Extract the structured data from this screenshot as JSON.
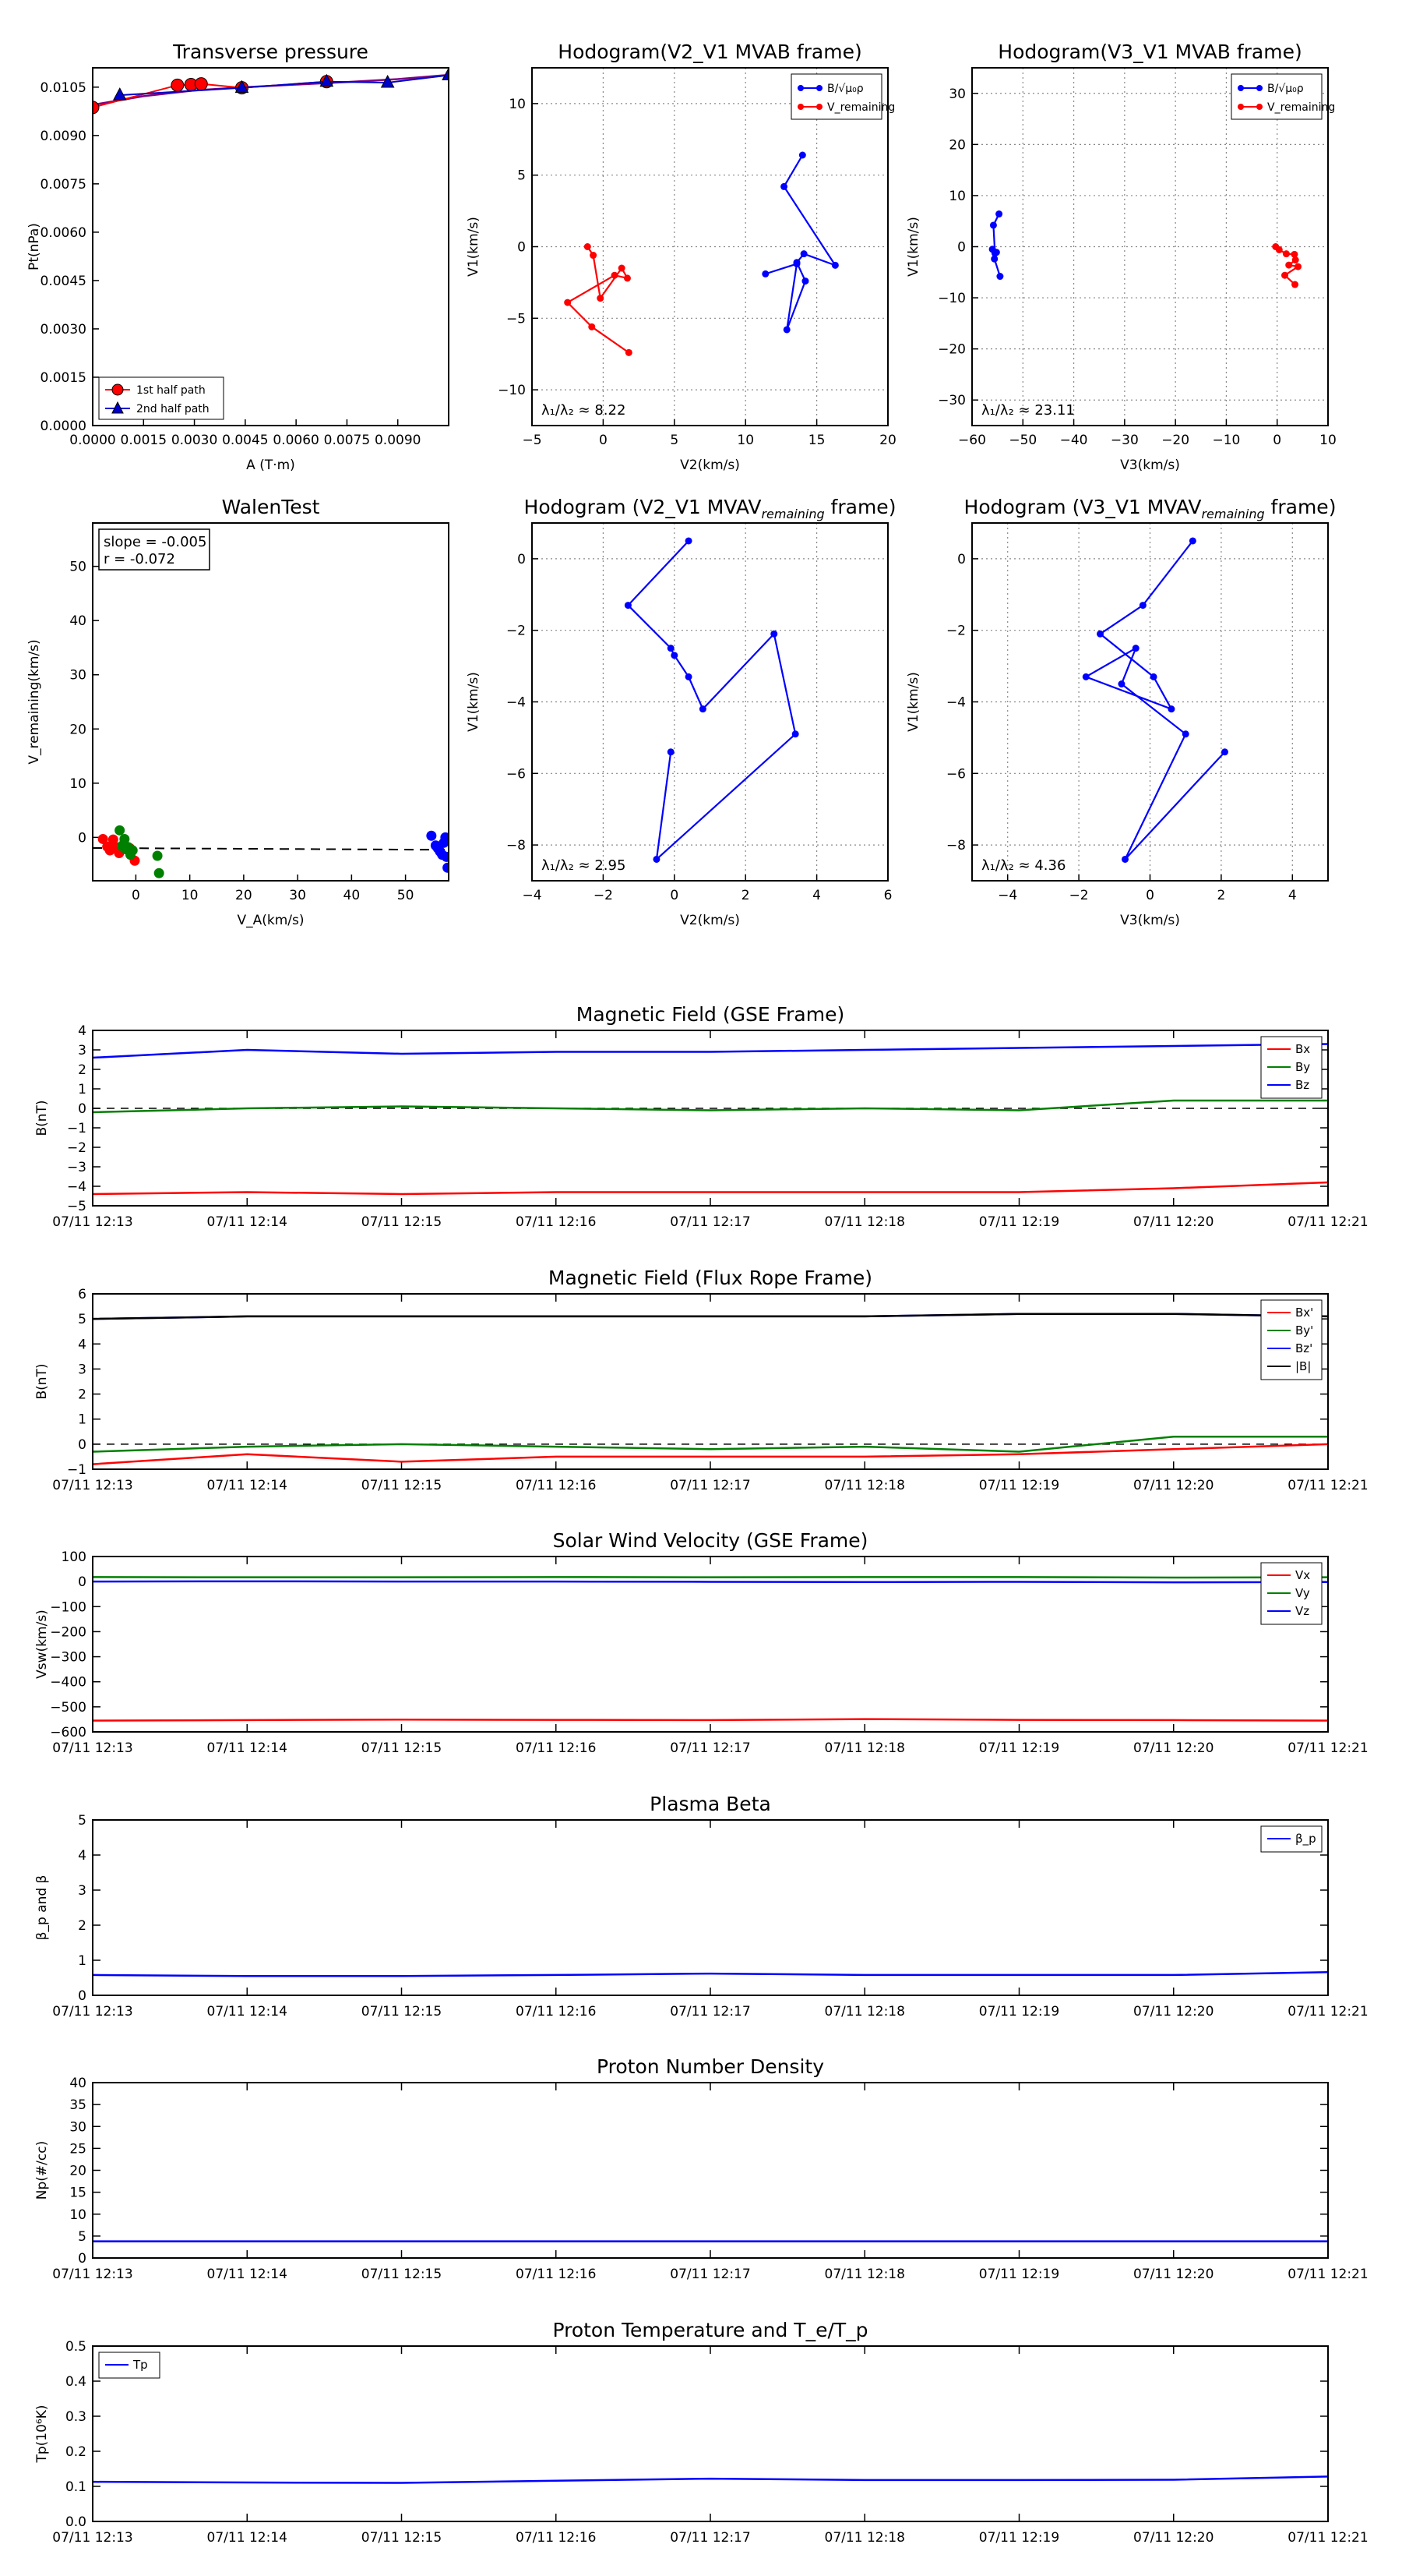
{
  "panels": [
    {
      "id": "tp",
      "title": "Transverse pressure",
      "xlabel": "A (T·m)",
      "ylabel": "Pt(nPa)",
      "xlim": [
        0,
        0.0105
      ],
      "ylim": [
        0,
        0.0111
      ],
      "xticks": [
        "0.0000",
        "0.0015",
        "0.0030",
        "0.0045",
        "0.0060",
        "0.0075",
        "0.0090"
      ],
      "xtickvals": [
        0,
        0.0015,
        0.003,
        0.0045,
        0.006,
        0.0075,
        0.009
      ],
      "yticks": [
        "0.0000",
        "0.0015",
        "0.0030",
        "0.0045",
        "0.0060",
        "0.0075",
        "0.0090",
        "0.0105"
      ],
      "ytickvals": [
        0,
        0.0015,
        0.003,
        0.0045,
        0.006,
        0.0075,
        0.009,
        0.0105
      ],
      "grid": false,
      "legend": [
        "1st half path",
        "2nd half path"
      ],
      "series": [
        {
          "name": "1st half path",
          "color": "#ff0000",
          "marker": "circle",
          "x": [
            0.0,
            0.0025,
            0.0029,
            0.0032,
            0.0044,
            0.0069
          ],
          "y": [
            0.00987,
            0.01056,
            0.01058,
            0.0106,
            0.01048,
            0.01067
          ]
        },
        {
          "name": "2nd half path",
          "color": "#0000cc",
          "marker": "triangle",
          "x": [
            0.0008,
            0.0044,
            0.0069,
            0.0087,
            0.0105
          ],
          "y": [
            0.01025,
            0.01048,
            0.01067,
            0.01064,
            0.01087
          ]
        }
      ],
      "fit_color": "#800080"
    },
    {
      "id": "h1",
      "title": "Hodogram(V2_V1 MVAB frame)",
      "xlabel": "V2(km/s)",
      "ylabel": "V1(km/s)",
      "xlim": [
        -5,
        20
      ],
      "ylim": [
        -12.5,
        12.5
      ],
      "xticks": [
        "−5",
        "0",
        "5",
        "10",
        "15",
        "20"
      ],
      "xtickvals": [
        -5,
        0,
        5,
        10,
        15,
        20
      ],
      "yticks": [
        "−10",
        "−5",
        "0",
        "5",
        "10"
      ],
      "ytickvals": [
        -10,
        -5,
        0,
        5,
        10
      ],
      "grid": true,
      "legend": [
        "B/√μ₀ρ",
        "V_remaining"
      ],
      "legend_loc": "top-right",
      "note": "λ₁/λ₂ ≈ 8.22",
      "series": [
        {
          "name": "B/√μ₀ρ",
          "color": "#0000ff",
          "x": [
            14.0,
            12.7,
            16.3,
            14.1,
            13.6,
            14.2,
            12.9,
            13.6,
            11.4
          ],
          "y": [
            6.4,
            4.2,
            -1.3,
            -0.5,
            -1.1,
            -2.4,
            -5.8,
            -1.2,
            -1.9
          ]
        },
        {
          "name": "V_remaining",
          "color": "#ff0000",
          "x": [
            -1.1,
            -0.7,
            -0.2,
            1.3,
            1.7,
            0.8,
            -2.5,
            -0.8,
            1.8
          ],
          "y": [
            0.0,
            -0.6,
            -3.6,
            -1.5,
            -2.2,
            -2.0,
            -3.9,
            -5.6,
            -7.4
          ]
        }
      ]
    },
    {
      "id": "h2",
      "title": "Hodogram(V3_V1 MVAB frame)",
      "xlabel": "V3(km/s)",
      "ylabel": "V1(km/s)",
      "xlim": [
        -60,
        10
      ],
      "ylim": [
        -35,
        35
      ],
      "xticks": [
        "−60",
        "−50",
        "−40",
        "−30",
        "−20",
        "−10",
        "0",
        "10"
      ],
      "xtickvals": [
        -60,
        -50,
        -40,
        -30,
        -20,
        -10,
        0,
        10
      ],
      "yticks": [
        "−30",
        "−20",
        "−10",
        "0",
        "10",
        "20",
        "30"
      ],
      "ytickvals": [
        -30,
        -20,
        -10,
        0,
        10,
        20,
        30
      ],
      "grid": true,
      "legend": [
        "B/√μ₀ρ",
        "V_remaining"
      ],
      "legend_loc": "top-right",
      "note": "λ₁/λ₂ ≈ 23.11",
      "series": [
        {
          "name": "B/√μ₀ρ",
          "color": "#0000ff",
          "x": [
            -54.7,
            -55.8,
            -55.5,
            -56.0,
            -55.2,
            -55.6,
            -54.5
          ],
          "y": [
            6.4,
            4.2,
            -1.3,
            -0.5,
            -1.1,
            -2.4,
            -5.8
          ]
        },
        {
          "name": "V_remaining",
          "color": "#ff0000",
          "x": [
            -0.3,
            0.4,
            1.8,
            3.4,
            3.6,
            2.3,
            4.1,
            1.5,
            3.5
          ],
          "y": [
            0.0,
            -0.6,
            -1.4,
            -1.5,
            -2.6,
            -3.6,
            -3.9,
            -5.6,
            -7.4
          ]
        }
      ]
    },
    {
      "id": "walen",
      "title": "WalenTest",
      "xlabel": "V_A(km/s)",
      "ylabel": "V_remaining(km/s)",
      "xlim": [
        -8,
        58
      ],
      "ylim": [
        -8,
        58
      ],
      "xticks": [
        "0",
        "10",
        "20",
        "30",
        "40",
        "50"
      ],
      "xtickvals": [
        0,
        10,
        20,
        30,
        40,
        50
      ],
      "yticks": [
        "0",
        "10",
        "20",
        "30",
        "40",
        "50"
      ],
      "ytickvals": [
        0,
        10,
        20,
        30,
        40,
        50
      ],
      "grid": false,
      "stats": [
        "slope = -0.005",
        "r = -0.072"
      ],
      "fit": {
        "slope": -0.005,
        "intercept": -2.0
      },
      "series": [
        {
          "name": "red",
          "color": "#ff0000",
          "x": [
            -6.1,
            -5.3,
            -4.8,
            -4.2,
            -3.7,
            -3.1,
            -2.2,
            -1.1,
            -0.2
          ],
          "y": [
            -0.3,
            -1.7,
            -2.4,
            -0.4,
            -1.8,
            -2.9,
            -1.2,
            -2.0,
            -4.3
          ]
        },
        {
          "name": "green",
          "color": "#008000",
          "x": [
            -3.0,
            -2.6,
            -2.1,
            -1.8,
            -1.4,
            -1.0,
            -0.6,
            4.0,
            4.3
          ],
          "y": [
            1.3,
            -1.6,
            -0.3,
            -2.2,
            -1.8,
            -3.2,
            -2.4,
            -3.4,
            -6.6
          ]
        },
        {
          "name": "blue",
          "color": "#0000ff",
          "x": [
            54.8,
            55.6,
            56.0,
            56.4,
            56.8,
            57.1,
            57.4,
            57.6,
            57.8
          ],
          "y": [
            0.3,
            -1.5,
            -2.0,
            -2.6,
            -3.2,
            -1.0,
            0.0,
            -3.6,
            -5.6
          ]
        }
      ]
    },
    {
      "id": "h3",
      "title": "Hodogram (V2_V1 MVAV",
      "title_sub": "remaining",
      "title_end": " frame)",
      "xlabel": "V2(km/s)",
      "ylabel": "V1(km/s)",
      "xlim": [
        -4,
        6
      ],
      "ylim": [
        -9,
        1
      ],
      "xticks": [
        "−4",
        "−2",
        "0",
        "2",
        "4",
        "6"
      ],
      "xtickvals": [
        -4,
        -2,
        0,
        2,
        4,
        6
      ],
      "yticks": [
        "−8",
        "−6",
        "−4",
        "−2",
        "0"
      ],
      "ytickvals": [
        -8,
        -6,
        -4,
        -2,
        0
      ],
      "grid": true,
      "note": "λ₁/λ₂ ≈ 2.95",
      "series": [
        {
          "name": "V",
          "color": "#0000ff",
          "x": [
            0.4,
            -1.3,
            -0.1,
            0.0,
            0.4,
            0.8,
            2.8,
            3.4,
            -0.5,
            -0.1
          ],
          "y": [
            0.5,
            -1.3,
            -2.5,
            -2.7,
            -3.3,
            -4.2,
            -2.1,
            -4.9,
            -8.4,
            -5.4
          ]
        }
      ]
    },
    {
      "id": "h4",
      "title": "Hodogram (V3_V1 MVAV",
      "title_sub": "remaining",
      "title_end": " frame)",
      "xlabel": "V3(km/s)",
      "ylabel": "V1(km/s)",
      "xlim": [
        -5,
        5
      ],
      "ylim": [
        -9,
        1
      ],
      "xticks": [
        "−4",
        "−2",
        "0",
        "2",
        "4"
      ],
      "xtickvals": [
        -4,
        -2,
        0,
        2,
        4
      ],
      "yticks": [
        "−8",
        "−6",
        "−4",
        "−2",
        "0"
      ],
      "ytickvals": [
        -8,
        -6,
        -4,
        -2,
        0
      ],
      "grid": true,
      "note": "λ₁/λ₂ ≈ 4.36",
      "series": [
        {
          "name": "V",
          "color": "#0000ff",
          "x": [
            1.2,
            -0.2,
            -1.4,
            0.1,
            0.6,
            -1.8,
            -0.4,
            -0.8,
            1.0,
            -0.7,
            2.1
          ],
          "y": [
            0.5,
            -1.3,
            -2.1,
            -3.3,
            -4.2,
            -3.3,
            -2.5,
            -3.5,
            -4.9,
            -8.4,
            -5.4
          ]
        }
      ]
    }
  ],
  "time_axis": {
    "ticks": [
      "07/11 12:13",
      "07/11 12:14",
      "07/11 12:15",
      "07/11 12:16",
      "07/11 12:17",
      "07/11 12:18",
      "07/11 12:19",
      "07/11 12:20",
      "07/11 12:21"
    ],
    "minutes": [
      0,
      1,
      2,
      3,
      4,
      5,
      6,
      7,
      8
    ],
    "range": [
      0,
      8
    ]
  },
  "timeseries": [
    {
      "id": "bgse",
      "title": "Magnetic Field (GSE Frame)",
      "ylabel": "B(nT)",
      "ylim": [
        -5,
        4
      ],
      "yticks": [
        "4",
        "3",
        "2",
        "1",
        "0",
        "−1",
        "−2",
        "−3",
        "−4",
        "−5"
      ],
      "ytickvals": [
        4,
        3,
        2,
        1,
        0,
        -1,
        -2,
        -3,
        -4,
        -5
      ],
      "zero_line": true,
      "legend": [
        "Bx",
        "By",
        "Bz"
      ],
      "series": [
        {
          "name": "Bx",
          "color": "#ff0000",
          "t": [
            0,
            1,
            2,
            3,
            4,
            5,
            6,
            7,
            8
          ],
          "v": [
            -4.4,
            -4.3,
            -4.4,
            -4.3,
            -4.3,
            -4.3,
            -4.3,
            -4.1,
            -3.8
          ]
        },
        {
          "name": "By",
          "color": "#008000",
          "t": [
            0,
            1,
            2,
            3,
            4,
            5,
            6,
            7,
            8
          ],
          "v": [
            -0.2,
            0.0,
            0.1,
            0.0,
            -0.1,
            -0.0,
            -0.1,
            0.4,
            0.4
          ]
        },
        {
          "name": "Bz",
          "color": "#0000ff",
          "t": [
            0,
            1,
            2,
            3,
            4,
            5,
            6,
            7,
            8
          ],
          "v": [
            2.6,
            3.0,
            2.8,
            2.9,
            2.9,
            3.0,
            3.1,
            3.2,
            3.3
          ]
        }
      ]
    },
    {
      "id": "bfr",
      "title": "Magnetic Field (Flux Rope Frame)",
      "ylabel": "B(nT)",
      "ylim": [
        -1,
        6
      ],
      "yticks": [
        "6",
        "5",
        "4",
        "3",
        "2",
        "1",
        "0",
        "−1"
      ],
      "ytickvals": [
        6,
        5,
        4,
        3,
        2,
        1,
        0,
        -1
      ],
      "zero_line": true,
      "legend": [
        "Bx'",
        "By'",
        "Bz'",
        "|B|"
      ],
      "series": [
        {
          "name": "Bx'",
          "color": "#ff0000",
          "t": [
            0,
            1,
            2,
            3,
            4,
            5,
            6,
            7,
            8
          ],
          "v": [
            -0.8,
            -0.4,
            -0.7,
            -0.5,
            -0.5,
            -0.5,
            -0.4,
            -0.2,
            0.0
          ]
        },
        {
          "name": "By'",
          "color": "#008000",
          "t": [
            0,
            1,
            2,
            3,
            4,
            5,
            6,
            7,
            8
          ],
          "v": [
            -0.3,
            -0.1,
            0.0,
            -0.1,
            -0.2,
            -0.1,
            -0.3,
            0.3,
            0.3
          ]
        },
        {
          "name": "Bz'",
          "color": "#0000ff",
          "t": [
            0,
            1,
            2,
            3,
            4,
            5,
            6,
            7,
            8
          ],
          "v": [
            5.0,
            5.1,
            5.1,
            5.1,
            5.1,
            5.1,
            5.2,
            5.2,
            5.1
          ]
        },
        {
          "name": "|B|",
          "color": "#000000",
          "t": [
            0,
            1,
            2,
            3,
            4,
            5,
            6,
            7,
            8
          ],
          "v": [
            5.0,
            5.1,
            5.1,
            5.1,
            5.1,
            5.1,
            5.2,
            5.2,
            5.1
          ]
        }
      ]
    },
    {
      "id": "vsw",
      "title": "Solar Wind Velocity (GSE Frame)",
      "ylabel": "Vsw(km/s)",
      "ylim": [
        -600,
        100
      ],
      "yticks": [
        "100",
        "0",
        "−100",
        "−200",
        "−300",
        "−400",
        "−500",
        "−600"
      ],
      "ytickvals": [
        100,
        0,
        -100,
        -200,
        -300,
        -400,
        -500,
        -600
      ],
      "zero_line": false,
      "legend": [
        "Vx",
        "Vy",
        "Vz"
      ],
      "series": [
        {
          "name": "Vx",
          "color": "#ff0000",
          "t": [
            0,
            1,
            2,
            3,
            4,
            5,
            6,
            7,
            8
          ],
          "v": [
            -555,
            -553,
            -551,
            -552,
            -553,
            -549,
            -552,
            -553,
            -555
          ]
        },
        {
          "name": "Vy",
          "color": "#008000",
          "t": [
            0,
            1,
            2,
            3,
            4,
            5,
            6,
            7,
            8
          ],
          "v": [
            18,
            17,
            17,
            18,
            17,
            18,
            18,
            16,
            17
          ]
        },
        {
          "name": "Vz",
          "color": "#0000ff",
          "t": [
            0,
            1,
            2,
            3,
            4,
            5,
            6,
            7,
            8
          ],
          "v": [
            0,
            1,
            0,
            0,
            -1,
            -2,
            -1,
            -3,
            -2
          ]
        }
      ]
    },
    {
      "id": "beta",
      "title": "Plasma Beta",
      "ylabel": "β_p and β",
      "ylim": [
        0,
        5
      ],
      "yticks": [
        "5",
        "4",
        "3",
        "2",
        "1",
        "0"
      ],
      "ytickvals": [
        5,
        4,
        3,
        2,
        1,
        0
      ],
      "zero_line": false,
      "legend": [
        "β_p"
      ],
      "series": [
        {
          "name": "β_p",
          "color": "#0000ff",
          "t": [
            0,
            1,
            2,
            3,
            4,
            5,
            6,
            7,
            8
          ],
          "v": [
            0.58,
            0.55,
            0.55,
            0.58,
            0.62,
            0.58,
            0.58,
            0.58,
            0.66
          ]
        }
      ]
    },
    {
      "id": "np",
      "title": "Proton Number Density",
      "ylabel": "Np(#/cc)",
      "ylim": [
        0,
        40
      ],
      "yticks": [
        "40",
        "35",
        "30",
        "25",
        "20",
        "15",
        "10",
        "5",
        "0"
      ],
      "ytickvals": [
        40,
        35,
        30,
        25,
        20,
        15,
        10,
        5,
        0
      ],
      "zero_line": false,
      "legend": [],
      "series": [
        {
          "name": "Np",
          "color": "#0000ff",
          "t": [
            0,
            1,
            2,
            3,
            4,
            5,
            6,
            7,
            8
          ],
          "v": [
            3.8,
            3.8,
            3.8,
            3.8,
            3.8,
            3.8,
            3.8,
            3.8,
            3.8
          ]
        }
      ]
    },
    {
      "id": "tp2",
      "title": "Proton Temperature and T_e/T_p",
      "ylabel": "Tp(10⁶K)",
      "ylim": [
        0,
        0.5
      ],
      "yticks": [
        "0.5",
        "0.4",
        "0.3",
        "0.2",
        "0.1",
        "0.0"
      ],
      "ytickvals": [
        0.5,
        0.4,
        0.3,
        0.2,
        0.1,
        0
      ],
      "zero_line": false,
      "legend": [
        "Tp"
      ],
      "legend_loc": "top-left",
      "series": [
        {
          "name": "Tp",
          "color": "#0000ff",
          "t": [
            0,
            1,
            2,
            3,
            4,
            5,
            6,
            7,
            8
          ],
          "v": [
            0.113,
            0.111,
            0.11,
            0.116,
            0.122,
            0.118,
            0.118,
            0.119,
            0.128
          ]
        }
      ]
    }
  ]
}
